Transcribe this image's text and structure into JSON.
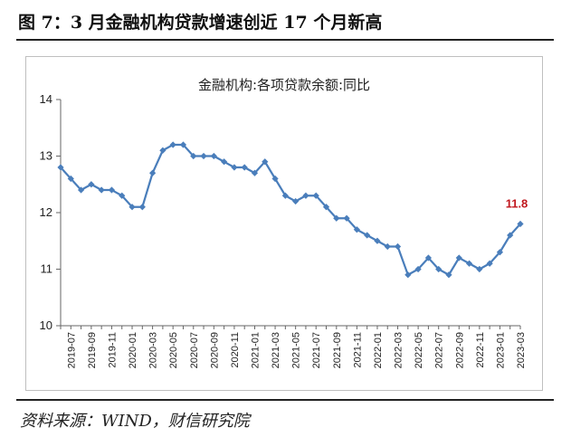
{
  "figure": {
    "title": "图 7：3 月金融机构贷款增速创近 17 个月新高",
    "source": "资料来源：WIND，财信研究院"
  },
  "chart_data": {
    "type": "line",
    "title": "金融机构:各项贷款余额:同比",
    "xlabel": "",
    "ylabel": "",
    "ylim": [
      10,
      14
    ],
    "yticks": [
      10,
      11,
      12,
      13,
      14
    ],
    "grid": false,
    "legend": "none",
    "line_color": "#4a7ebb",
    "label_color": "#c0161d",
    "x": [
      "2019-06",
      "2019-07",
      "2019-08",
      "2019-09",
      "2019-10",
      "2019-11",
      "2019-12",
      "2020-01",
      "2020-02",
      "2020-03",
      "2020-04",
      "2020-05",
      "2020-06",
      "2020-07",
      "2020-08",
      "2020-09",
      "2020-10",
      "2020-11",
      "2020-12",
      "2021-01",
      "2021-02",
      "2021-03",
      "2021-04",
      "2021-05",
      "2021-06",
      "2021-07",
      "2021-08",
      "2021-09",
      "2021-10",
      "2021-11",
      "2021-12",
      "2022-01",
      "2022-02",
      "2022-03",
      "2022-04",
      "2022-05",
      "2022-06",
      "2022-07",
      "2022-08",
      "2022-09",
      "2022-10",
      "2022-11",
      "2022-12",
      "2023-01",
      "2023-02",
      "2023-03"
    ],
    "x_tick_labels": [
      "2019-07",
      "2019-09",
      "2019-11",
      "2020-01",
      "2020-03",
      "2020-05",
      "2020-07",
      "2020-09",
      "2020-11",
      "2021-01",
      "2021-03",
      "2021-05",
      "2021-07",
      "2021-09",
      "2021-11",
      "2022-01",
      "2022-03",
      "2022-05",
      "2022-07",
      "2022-09",
      "2022-11",
      "2023-01",
      "2023-03"
    ],
    "series": [
      {
        "values": [
          12.8,
          12.6,
          12.4,
          12.5,
          12.4,
          12.4,
          12.3,
          12.1,
          12.1,
          12.7,
          13.1,
          13.2,
          13.2,
          13.0,
          13.0,
          13.0,
          12.9,
          12.8,
          12.8,
          12.7,
          12.9,
          12.6,
          12.3,
          12.2,
          12.3,
          12.3,
          12.1,
          11.9,
          11.9,
          11.7,
          11.6,
          11.5,
          11.4,
          11.4,
          10.9,
          11.0,
          11.2,
          11.0,
          10.9,
          11.2,
          11.1,
          11.0,
          11.1,
          11.3,
          11.6,
          11.8
        ]
      }
    ],
    "annotations": [
      {
        "x": "2023-03",
        "text": "11.8"
      }
    ]
  }
}
